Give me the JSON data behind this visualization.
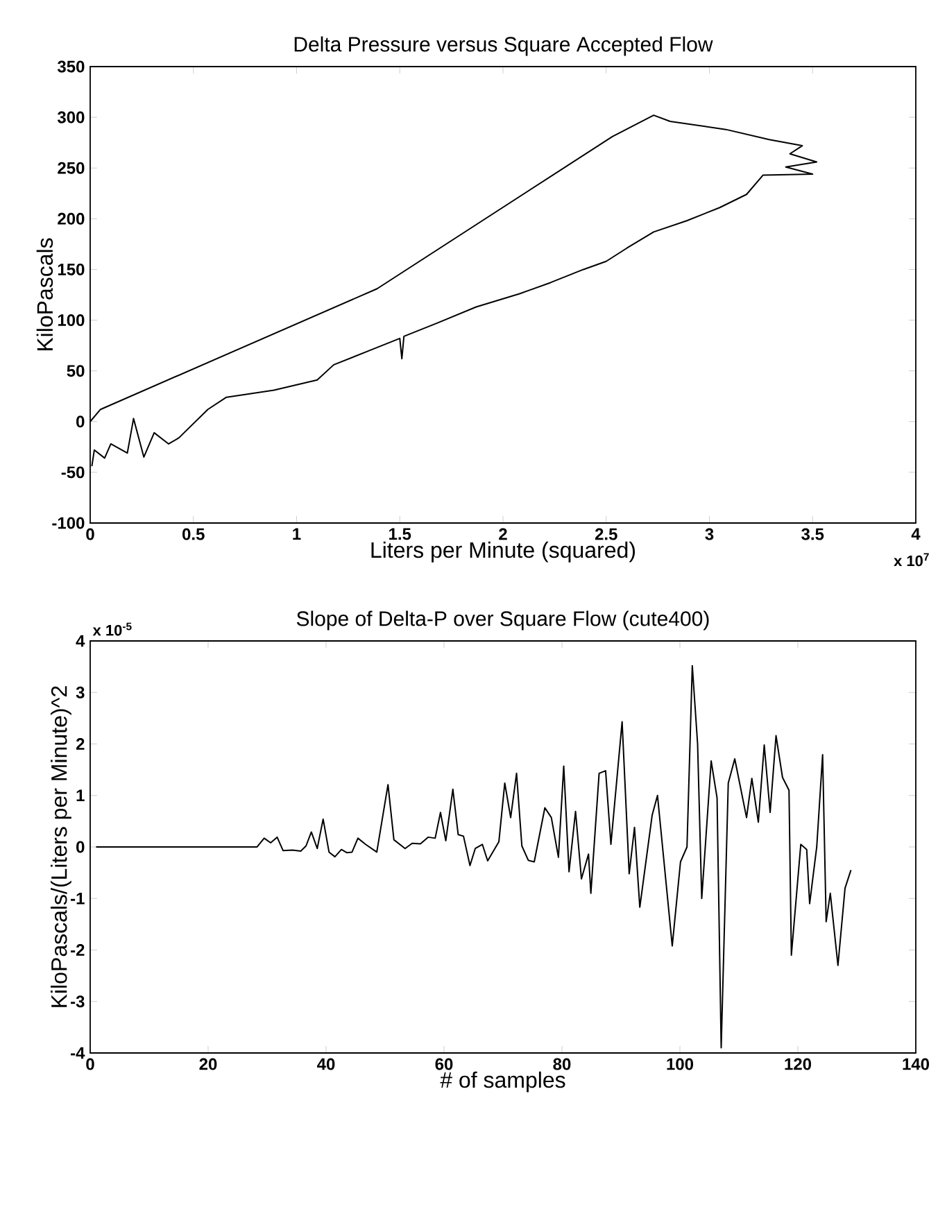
{
  "chart_data": [
    {
      "type": "line",
      "title": "Delta Pressure versus Square Accepted Flow",
      "xlabel": "Liters per Minute (squared)",
      "ylabel": "KiloPascals",
      "annotations": [
        "x 10$^{7}$"
      ],
      "color": "#000000",
      "xlim": [
        0,
        4
      ],
      "ylim": [
        -100,
        350
      ],
      "xticks": [
        0,
        0.5,
        1,
        1.5,
        2,
        2.5,
        3,
        3.5,
        4
      ],
      "yticks": [
        -100,
        -50,
        0,
        50,
        100,
        150,
        200,
        250,
        300,
        350
      ],
      "x": [
        0.008,
        0.02,
        0.07,
        0.1,
        0.18,
        0.21,
        0.26,
        0.31,
        0.38,
        0.43,
        0.57,
        0.66,
        0.89,
        1.1,
        1.18,
        1.34,
        1.5,
        1.51,
        1.52,
        1.68,
        1.87,
        2.08,
        2.23,
        2.39,
        2.5,
        2.6,
        2.73,
        2.89,
        3.05,
        3.18,
        3.26,
        3.5,
        3.37,
        3.52,
        3.39,
        3.45,
        3.29,
        3.08,
        2.81,
        2.73,
        2.53,
        1.39,
        0.05,
        0
      ],
      "values": [
        -44,
        -28,
        -36,
        -22,
        -31,
        3,
        -35,
        -11,
        -22,
        -16,
        12,
        24,
        31,
        41,
        56,
        69,
        82,
        62,
        84,
        97,
        113,
        126,
        137,
        150,
        158,
        171,
        187,
        198,
        211,
        224,
        243,
        244,
        251,
        256,
        264,
        272,
        278,
        288,
        296,
        302,
        281,
        131,
        12,
        0
      ]
    },
    {
      "type": "line",
      "title": "Slope of Delta-P over Square Flow (cute400)",
      "xlabel": "# of samples",
      "ylabel": "KiloPascals/(Liters per Minute)^2",
      "annotations": [
        "x 10$^{-5}$"
      ],
      "color": "#000000",
      "xlim": [
        0,
        140
      ],
      "ylim": [
        -4,
        4
      ],
      "xticks": [
        0,
        20,
        40,
        60,
        80,
        100,
        120,
        140
      ],
      "yticks": [
        -4,
        -3,
        -2,
        -1,
        0,
        1,
        2,
        3,
        4
      ],
      "x": [
        1,
        28.3,
        29.5,
        30.6,
        31.7,
        32.7,
        34.3,
        35.7,
        36.6,
        37.5,
        38.5,
        39.5,
        40.5,
        41.5,
        42.6,
        43.5,
        44.4,
        45.4,
        46.7,
        48.6,
        50.5,
        51.5,
        53.4,
        54.6,
        56,
        57.3,
        58.5,
        59.4,
        60.3,
        61.5,
        62.4,
        63.3,
        64.4,
        65.3,
        66.5,
        67.4,
        69.3,
        70.3,
        71.3,
        72.3,
        73.2,
        74.3,
        75.3,
        77.1,
        78.2,
        79.4,
        80.3,
        81.2,
        82.3,
        83.3,
        84.5,
        84.9,
        86.3,
        87.4,
        88.3,
        90.2,
        91.4,
        92.3,
        93.2,
        95.3,
        96.2,
        98.7,
        100.1,
        101.2,
        102.1,
        103.0,
        103.7,
        105.3,
        106.3,
        107,
        108.2,
        109.3,
        111.3,
        112.2,
        113.3,
        114.3,
        115.3,
        116.3,
        117.4,
        118.5,
        118.9,
        120.5,
        121.5,
        122,
        123.2,
        124.2,
        124.8,
        125.5,
        126.8,
        128,
        129
      ],
      "values": [
        0,
        0,
        0.17,
        0.08,
        0.19,
        -0.07,
        -0.06,
        -0.08,
        0.02,
        0.29,
        -0.03,
        0.54,
        -0.1,
        -0.19,
        -0.05,
        -0.11,
        -0.1,
        0.17,
        0.05,
        -0.1,
        1.21,
        0.14,
        -0.03,
        0.07,
        0.06,
        0.19,
        0.17,
        0.67,
        0.12,
        1.12,
        0.24,
        0.21,
        -0.36,
        -0.03,
        0.05,
        -0.27,
        0.1,
        1.24,
        0.57,
        1.43,
        0.02,
        -0.26,
        -0.29,
        0.76,
        0.57,
        -0.2,
        1.57,
        -0.48,
        0.69,
        -0.62,
        -0.14,
        -0.9,
        1.43,
        1.48,
        0.05,
        2.43,
        -0.52,
        0.38,
        -1.17,
        0.62,
        1.0,
        -1.92,
        -0.29,
        0,
        3.52,
        2.0,
        -1.0,
        1.67,
        0.95,
        -3.9,
        1.24,
        1.71,
        0.57,
        1.33,
        0.48,
        1.98,
        0.67,
        2.16,
        1.35,
        1.1,
        -2.1,
        0.05,
        -0.05,
        -1.1,
        0.0,
        1.79,
        -1.45,
        -0.9,
        -2.3,
        -0.8,
        -0.45
      ]
    }
  ]
}
